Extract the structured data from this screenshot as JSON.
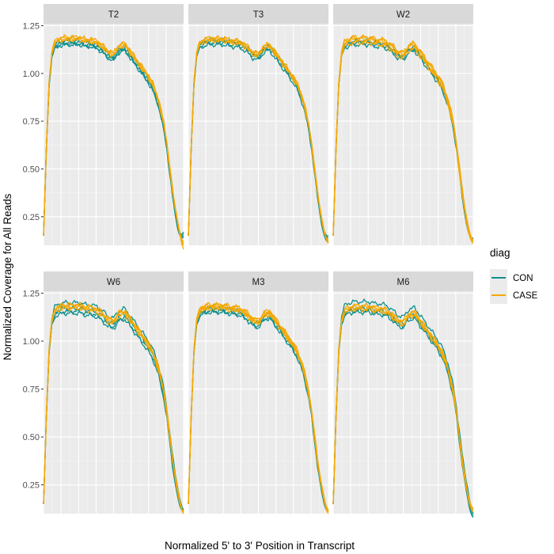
{
  "chart_data": {
    "type": "line",
    "title": "",
    "xlabel": "Normalized 5' to 3' Position in Transcript",
    "ylabel": "Normalized Coverage for All Reads",
    "xlim": [
      0,
      100
    ],
    "ylim": [
      0.1,
      1.26
    ],
    "yticks": [
      0.25,
      0.5,
      0.75,
      1.0,
      1.25
    ],
    "ytick_labels": [
      "0.25",
      "0.50",
      "0.75",
      "1.00",
      "1.25"
    ],
    "xticks": [
      0,
      12.5,
      25,
      37.5,
      50,
      62.5,
      75,
      87.5,
      100
    ],
    "grid": true,
    "legend": {
      "title": "diag",
      "position": "right",
      "entries": [
        {
          "name": "CON",
          "color": "#0e8f8f"
        },
        {
          "name": "CASE",
          "color": "#f5a800"
        }
      ]
    },
    "base_profile": {
      "x": [
        0,
        2,
        4,
        6,
        8,
        10,
        14,
        18,
        22,
        26,
        30,
        34,
        38,
        42,
        46,
        50,
        54,
        58,
        62,
        66,
        70,
        74,
        78,
        82,
        86,
        88,
        90,
        92,
        94,
        96,
        98,
        100
      ],
      "y": [
        0.15,
        0.6,
        0.95,
        1.1,
        1.15,
        1.16,
        1.17,
        1.17,
        1.17,
        1.17,
        1.16,
        1.16,
        1.15,
        1.13,
        1.1,
        1.09,
        1.13,
        1.14,
        1.1,
        1.06,
        1.02,
        0.98,
        0.93,
        0.85,
        0.72,
        0.62,
        0.5,
        0.38,
        0.28,
        0.2,
        0.16,
        0.12
      ]
    },
    "panels": [
      {
        "name": "T2",
        "series": [
          {
            "group": "CON",
            "offset": -0.02,
            "end": 0.15
          },
          {
            "group": "CON",
            "offset": -0.015,
            "end": 0.16
          },
          {
            "group": "CON",
            "offset": -0.01,
            "end": 0.17
          },
          {
            "group": "CON",
            "offset": 0.0,
            "end": 0.14
          },
          {
            "group": "CASE",
            "offset": 0.02,
            "end": 0.08
          },
          {
            "group": "CASE",
            "offset": 0.015,
            "end": 0.12
          },
          {
            "group": "CASE",
            "offset": 0.01,
            "end": 0.1
          },
          {
            "group": "CASE",
            "offset": 0.005,
            "end": 0.11
          }
        ]
      },
      {
        "name": "T3",
        "series": [
          {
            "group": "CON",
            "offset": -0.02,
            "end": 0.12
          },
          {
            "group": "CON",
            "offset": -0.01,
            "end": 0.13
          },
          {
            "group": "CON",
            "offset": 0.0,
            "end": 0.14
          },
          {
            "group": "CON",
            "offset": 0.005,
            "end": 0.15
          },
          {
            "group": "CASE",
            "offset": 0.015,
            "end": 0.11
          },
          {
            "group": "CASE",
            "offset": 0.01,
            "end": 0.12
          },
          {
            "group": "CASE",
            "offset": 0.005,
            "end": 0.13
          },
          {
            "group": "CASE",
            "offset": 0.0,
            "end": 0.12
          }
        ]
      },
      {
        "name": "W2",
        "series": [
          {
            "group": "CON",
            "offset": -0.02,
            "end": 0.14
          },
          {
            "group": "CON",
            "offset": -0.01,
            "end": 0.13
          },
          {
            "group": "CON",
            "offset": 0.0,
            "end": 0.12
          },
          {
            "group": "CASE",
            "offset": 0.02,
            "end": 0.12
          },
          {
            "group": "CASE",
            "offset": 0.01,
            "end": 0.13
          },
          {
            "group": "CASE",
            "offset": 0.0,
            "end": 0.11
          },
          {
            "group": "CASE",
            "offset": -0.01,
            "end": 0.12
          },
          {
            "group": "CASE",
            "offset": 0.015,
            "end": 0.13
          }
        ]
      },
      {
        "name": "W6",
        "series": [
          {
            "group": "CON",
            "offset": -0.025,
            "end": 0.12
          },
          {
            "group": "CON",
            "offset": -0.015,
            "end": 0.11
          },
          {
            "group": "CON",
            "offset": 0.03,
            "end": 0.12
          },
          {
            "group": "CON",
            "offset": 0.0,
            "end": 0.11
          },
          {
            "group": "CASE",
            "offset": 0.02,
            "end": 0.11
          },
          {
            "group": "CASE",
            "offset": 0.01,
            "end": 0.1
          },
          {
            "group": "CASE",
            "offset": 0.0,
            "end": 0.11
          },
          {
            "group": "CASE",
            "offset": 0.015,
            "end": 0.1
          }
        ]
      },
      {
        "name": "M3",
        "series": [
          {
            "group": "CON",
            "offset": -0.02,
            "end": 0.12
          },
          {
            "group": "CON",
            "offset": -0.015,
            "end": 0.11
          },
          {
            "group": "CON",
            "offset": 0.0,
            "end": 0.12
          },
          {
            "group": "CASE",
            "offset": 0.015,
            "end": 0.11
          },
          {
            "group": "CASE",
            "offset": 0.01,
            "end": 0.1
          },
          {
            "group": "CASE",
            "offset": 0.005,
            "end": 0.11
          },
          {
            "group": "CASE",
            "offset": 0.02,
            "end": 0.12
          },
          {
            "group": "CASE",
            "offset": 0.0,
            "end": 0.11
          }
        ]
      },
      {
        "name": "M6",
        "series": [
          {
            "group": "CON",
            "offset": -0.02,
            "end": 0.08
          },
          {
            "group": "CON",
            "offset": 0.035,
            "end": 0.1
          },
          {
            "group": "CON",
            "offset": 0.0,
            "end": 0.12
          },
          {
            "group": "CON",
            "offset": -0.01,
            "end": 0.09
          },
          {
            "group": "CASE",
            "offset": 0.015,
            "end": 0.12
          },
          {
            "group": "CASE",
            "offset": 0.01,
            "end": 0.13
          },
          {
            "group": "CASE",
            "offset": 0.0,
            "end": 0.11
          },
          {
            "group": "CASE",
            "offset": -0.005,
            "end": 0.12
          }
        ]
      }
    ]
  }
}
